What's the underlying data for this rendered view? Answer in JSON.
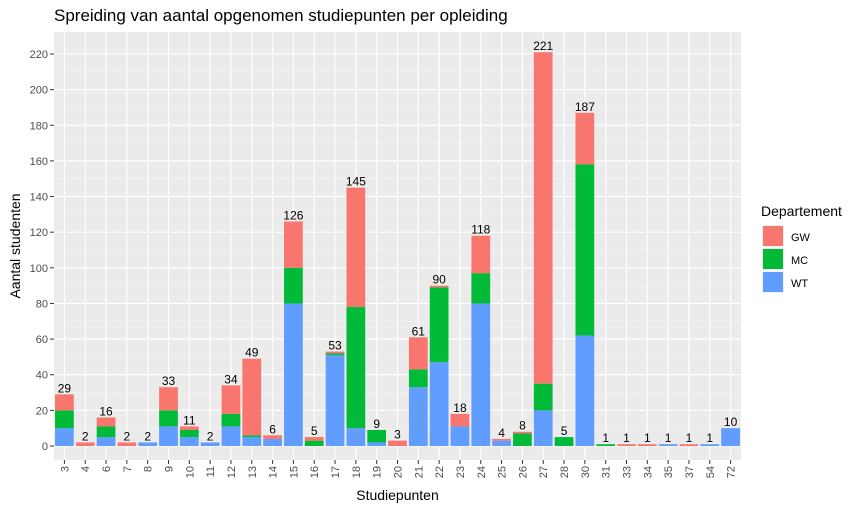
{
  "chart_data": {
    "type": "bar",
    "stacked": true,
    "title": "Spreiding van aantal opgenomen studiepunten per opleiding",
    "xlabel": "Studiepunten",
    "ylabel": "Aantal studenten",
    "ylim": [
      0,
      225
    ],
    "yticks": [
      0,
      20,
      40,
      60,
      80,
      100,
      120,
      140,
      160,
      180,
      200,
      220
    ],
    "grid": true,
    "legend_title": "Departement",
    "legend_position": "right",
    "categories": [
      "3",
      "4",
      "6",
      "7",
      "8",
      "9",
      "10",
      "11",
      "12",
      "13",
      "14",
      "15",
      "16",
      "17",
      "18",
      "19",
      "20",
      "21",
      "22",
      "23",
      "24",
      "25",
      "26",
      "27",
      "28",
      "30",
      "31",
      "33",
      "34",
      "35",
      "37",
      "54",
      "72"
    ],
    "series": [
      {
        "name": "GW",
        "color": "#F8766D",
        "values": [
          9,
          2,
          5,
          2,
          0,
          13,
          2,
          0,
          16,
          43,
          2,
          26,
          2,
          1,
          67,
          0,
          3,
          18,
          1,
          7,
          21,
          1,
          1,
          186,
          0,
          29,
          0,
          1,
          1,
          0,
          1,
          0,
          0
        ]
      },
      {
        "name": "MC",
        "color": "#00BA38",
        "values": [
          10,
          0,
          6,
          0,
          0,
          9,
          4,
          0,
          7,
          1,
          0,
          20,
          3,
          1,
          68,
          7,
          0,
          10,
          42,
          0,
          17,
          0,
          7,
          15,
          5,
          96,
          1,
          0,
          0,
          0,
          0,
          0,
          0
        ]
      },
      {
        "name": "WT",
        "color": "#619CFF",
        "values": [
          10,
          0,
          5,
          0,
          2,
          11,
          5,
          2,
          11,
          5,
          4,
          80,
          0,
          51,
          10,
          2,
          0,
          33,
          47,
          11,
          80,
          3,
          0,
          20,
          0,
          62,
          0,
          0,
          0,
          1,
          0,
          1,
          10
        ]
      }
    ],
    "totals": [
      29,
      2,
      16,
      2,
      2,
      33,
      11,
      2,
      34,
      49,
      6,
      126,
      5,
      53,
      145,
      9,
      3,
      61,
      90,
      18,
      118,
      4,
      8,
      221,
      5,
      187,
      1,
      1,
      1,
      1,
      1,
      1,
      10
    ]
  }
}
